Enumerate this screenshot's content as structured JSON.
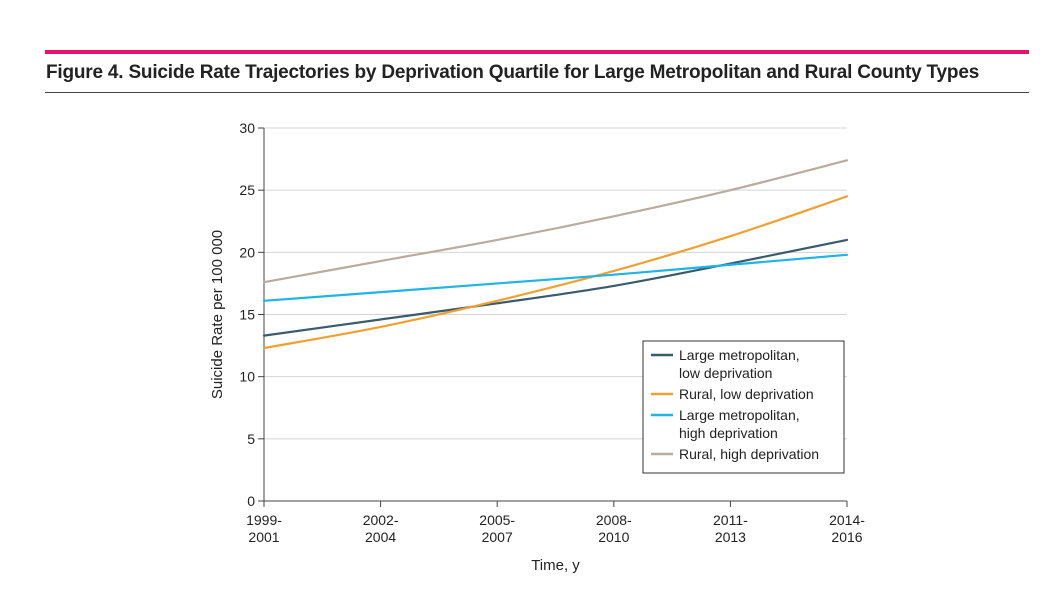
{
  "figure": {
    "title": "Figure 4. Suicide Rate Trajectories by Deprivation Quartile for Large Metropolitan and Rural County Types",
    "accent_color": "#e4146e"
  },
  "chart_data": {
    "type": "line",
    "xlabel": "Time, y",
    "ylabel": "Suicide Rate per 100 000",
    "ylim": [
      0,
      30
    ],
    "yticks": [
      0,
      5,
      10,
      15,
      20,
      25,
      30
    ],
    "categories": [
      [
        "1999-",
        "2001"
      ],
      [
        "2002-",
        "2004"
      ],
      [
        "2005-",
        "2007"
      ],
      [
        "2008-",
        "2010"
      ],
      [
        "2011-",
        "2013"
      ],
      [
        "2014-",
        "2016"
      ]
    ],
    "grid": "horizontal",
    "legend_position": "bottom-right",
    "series": [
      {
        "name": [
          "Large metropolitan,",
          "low deprivation"
        ],
        "color": "#3a5a6e",
        "values": [
          13.3,
          14.6,
          15.9,
          17.3,
          19.1,
          21.0
        ]
      },
      {
        "name": [
          "Rural, low deprivation"
        ],
        "color": "#f0a030",
        "values": [
          12.3,
          14.0,
          16.1,
          18.5,
          21.3,
          24.5
        ]
      },
      {
        "name": [
          "Large metropolitan,",
          "high deprivation"
        ],
        "color": "#1eb4e6",
        "values": [
          16.1,
          16.8,
          17.5,
          18.2,
          19.0,
          19.8
        ]
      },
      {
        "name": [
          "Rural, high deprivation"
        ],
        "color": "#b9ac9e",
        "values": [
          17.6,
          19.3,
          21.0,
          22.9,
          25.0,
          27.4
        ]
      }
    ]
  }
}
